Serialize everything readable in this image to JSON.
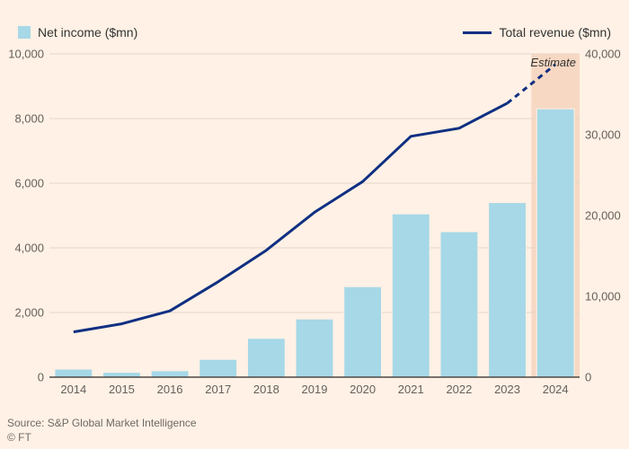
{
  "legend": {
    "bar_label": "Net income ($mn)",
    "line_label": "Total revenue ($mn)"
  },
  "estimate_label": "Estimate",
  "source_text": "Source: S&P Global Market Intelligence",
  "copyright_text": "© FT",
  "chart": {
    "type": "bar+line",
    "background_color": "#fff1e5",
    "grid_color": "#e3d6c9",
    "baseline_color": "#4d4845",
    "bar_color": "#a6d8e7",
    "bar_stroke": "#fff1e5",
    "line_color": "#0f2f82",
    "estimate_band_color": "#f7d8c3",
    "text_color": "#66605c",
    "line_width": 3,
    "bar_width_ratio": 0.78,
    "x_labels": [
      "2014",
      "2015",
      "2016",
      "2017",
      "2018",
      "2019",
      "2020",
      "2021",
      "2022",
      "2023",
      "2024"
    ],
    "bars": [
      250,
      150,
      200,
      550,
      1200,
      1800,
      2800,
      5050,
      4500,
      5400,
      8300
    ],
    "line_solid": [
      5600,
      6600,
      8200,
      11800,
      15700,
      20400,
      24200,
      29800,
      30800,
      33900
    ],
    "line_dashed_start_index": 9,
    "line_dashed": [
      33900,
      38700
    ],
    "estimate_index": 10,
    "left_axis": {
      "min": 0,
      "max": 10000,
      "step": 2000
    },
    "right_axis": {
      "min": 0,
      "max": 40000,
      "step": 10000
    },
    "label_fontsize": 13,
    "legend_fontsize": 14
  }
}
